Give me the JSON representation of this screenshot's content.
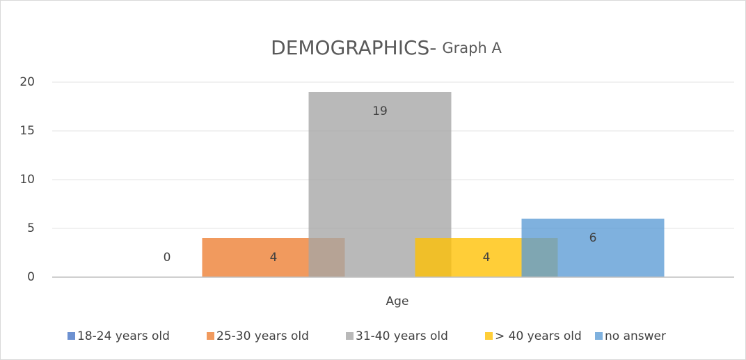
{
  "chart_data": {
    "type": "bar",
    "title": "DEMOGRAPHICS-",
    "subtitle": "Graph A",
    "categories": [
      "Age"
    ],
    "series": [
      {
        "name": "18-24 years old",
        "color": "#4472c4",
        "values": [
          0
        ]
      },
      {
        "name": "25-30 years old",
        "color": "#ed7d31",
        "values": [
          4
        ]
      },
      {
        "name": "31-40 years old",
        "color": "#a5a5a5",
        "values": [
          19
        ]
      },
      {
        "name": "> 40 years old",
        "color": "#ffc000",
        "values": [
          4
        ]
      },
      {
        "name": "no answer",
        "color": "#5b9bd5",
        "values": [
          6
        ]
      }
    ],
    "ylim": [
      0,
      20
    ],
    "yticks": [
      0,
      5,
      10,
      15,
      20
    ],
    "grid": true,
    "legend": "bottom"
  }
}
